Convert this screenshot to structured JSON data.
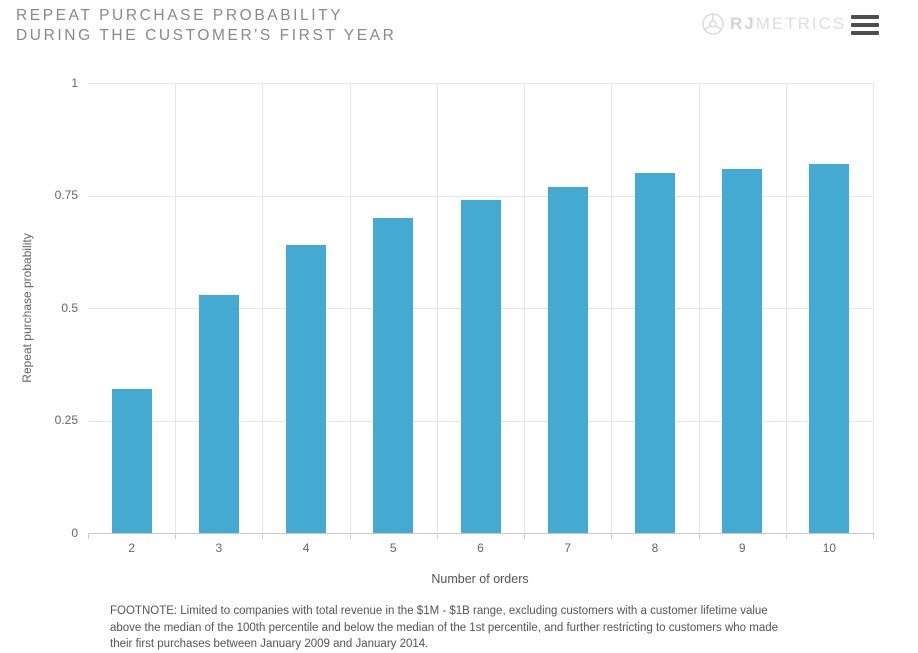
{
  "header": {
    "title_line1": "REPEAT PURCHASE PROBABILITY",
    "title_line2": "DURING THE CUSTOMER'S FIRST YEAR",
    "logo": {
      "brand_bold": "RJ",
      "brand_light": "METRICS",
      "icon": "sphere-wireframe",
      "icon_color": "#dcdcdc",
      "text_color": "#d6d6d6"
    },
    "menu_icon": "hamburger",
    "menu_color": "#4d4d4d"
  },
  "chart_data": {
    "type": "bar",
    "title": "Repeat purchase probability during the customer's first year",
    "categories": [
      "2",
      "3",
      "4",
      "5",
      "6",
      "7",
      "8",
      "9",
      "10"
    ],
    "values": [
      0.32,
      0.53,
      0.64,
      0.7,
      0.74,
      0.77,
      0.8,
      0.81,
      0.82
    ],
    "xlabel": "Number of orders",
    "ylabel": "Repeat purchase probability",
    "ylim": [
      0,
      1
    ],
    "yticks": [
      0,
      0.25,
      0.5,
      0.75,
      1
    ],
    "ytick_labels": [
      "0",
      "0.25",
      "0.5",
      "0.75",
      "1"
    ],
    "grid": true,
    "legend": "none",
    "bar_color": "#45aad2",
    "gridline_color": "#e6e6e6"
  },
  "footnote": "FOOTNOTE: Limited to companies with total revenue in the $1M - $1B range, excluding customers with a customer lifetime value above the median of the 100th percentile and below the median of the 1st percentile, and further restricting to customers who made their first purchases between January 2009 and January 2014."
}
